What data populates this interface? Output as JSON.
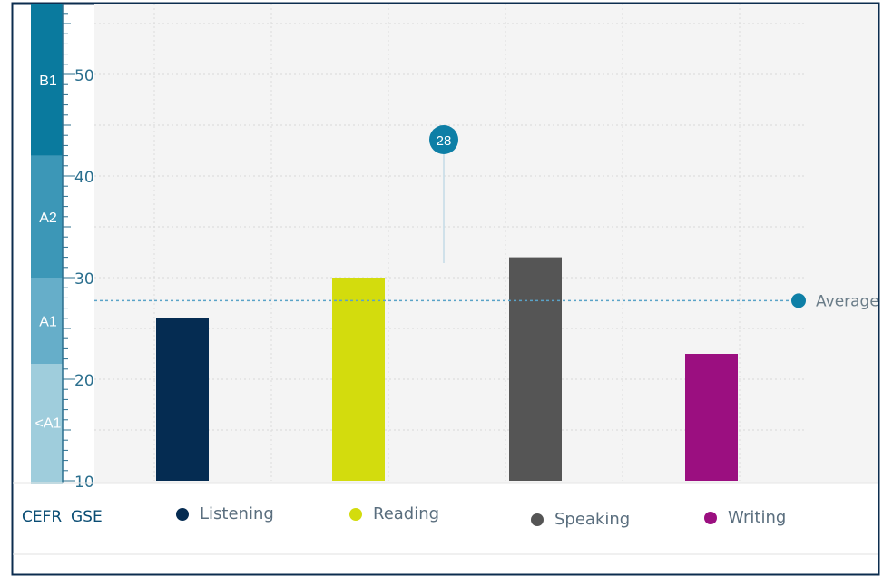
{
  "chart_data": {
    "type": "bar",
    "categories": [
      "Listening",
      "Reading",
      "Speaking",
      "Writing"
    ],
    "values": [
      26,
      30,
      32,
      22.5
    ],
    "colors": [
      "#052c52",
      "#d3dc0d",
      "#555555",
      "#9b0f80"
    ],
    "ylim": [
      10,
      57
    ],
    "yticks": [
      10,
      20,
      30,
      40,
      50
    ],
    "average": {
      "value": 28,
      "label": "Average",
      "marker_text": "28",
      "color": "#0e7fa6"
    },
    "cefr_bands": [
      {
        "label": "<A1",
        "from": 10,
        "to": 21.5,
        "color": "#9fcddc"
      },
      {
        "label": "A1",
        "from": 21.5,
        "to": 30,
        "color": "#66aec9"
      },
      {
        "label": "A2",
        "from": 30,
        "to": 42,
        "color": "#3c97b7"
      },
      {
        "label": "B1",
        "from": 42,
        "to": 57,
        "color": "#0a7a9e"
      }
    ],
    "grid": true
  },
  "legend": {
    "cefr_label": "CEFR",
    "gse_label": "GSE",
    "items": [
      {
        "label": "Listening",
        "color": "#052c52"
      },
      {
        "label": "Reading",
        "color": "#d3dc0d"
      },
      {
        "label": "Speaking",
        "color": "#555555"
      },
      {
        "label": "Writing",
        "color": "#9b0f80"
      }
    ]
  }
}
